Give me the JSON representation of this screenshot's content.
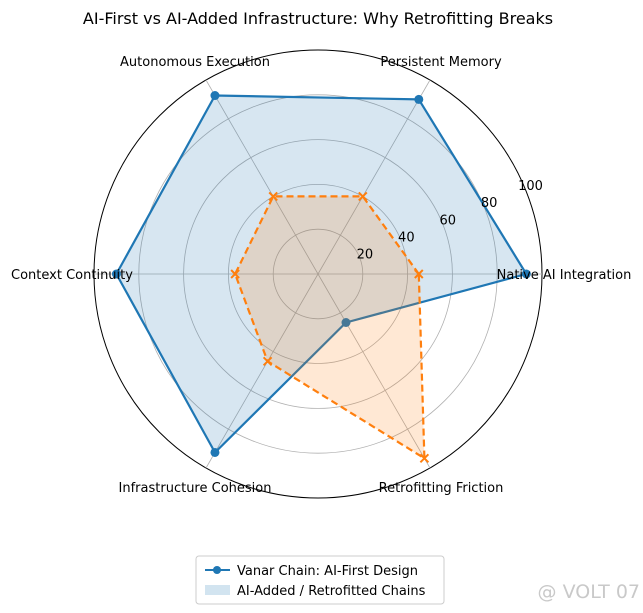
{
  "chart_data": {
    "type": "radar",
    "title": "AI-First vs AI-Added Infrastructure: Why Retrofitting Breaks",
    "categories": [
      "Native AI Integration",
      "Persistent Memory",
      "Autonomous Execution",
      "Context Continuity",
      "Infrastructure Cohesion",
      "Retrofitting Friction"
    ],
    "rlim": [
      0,
      100
    ],
    "rticks": [
      20,
      40,
      60,
      80,
      100
    ],
    "grid": true,
    "legend_position": "bottom-center",
    "series": [
      {
        "name": "Vanar Chain: AI-First Design",
        "values": [
          93,
          90,
          92,
          90,
          92,
          25
        ],
        "color": "#1f77b4",
        "fill_color": "#1f77b4",
        "line_style": "solid",
        "marker": "circle"
      },
      {
        "name": "AI-Added / Retrofitted Chains",
        "values": [
          45,
          40,
          40,
          37,
          45,
          95
        ],
        "color": "#ff7f0e",
        "fill_color": "#ff7f0e",
        "line_style": "dashed",
        "marker": "x"
      }
    ],
    "legend_entries": [
      "Vanar Chain: AI-First Design",
      "AI-Added / Retrofitted Chains"
    ]
  },
  "watermark": "@ VOLT 07"
}
